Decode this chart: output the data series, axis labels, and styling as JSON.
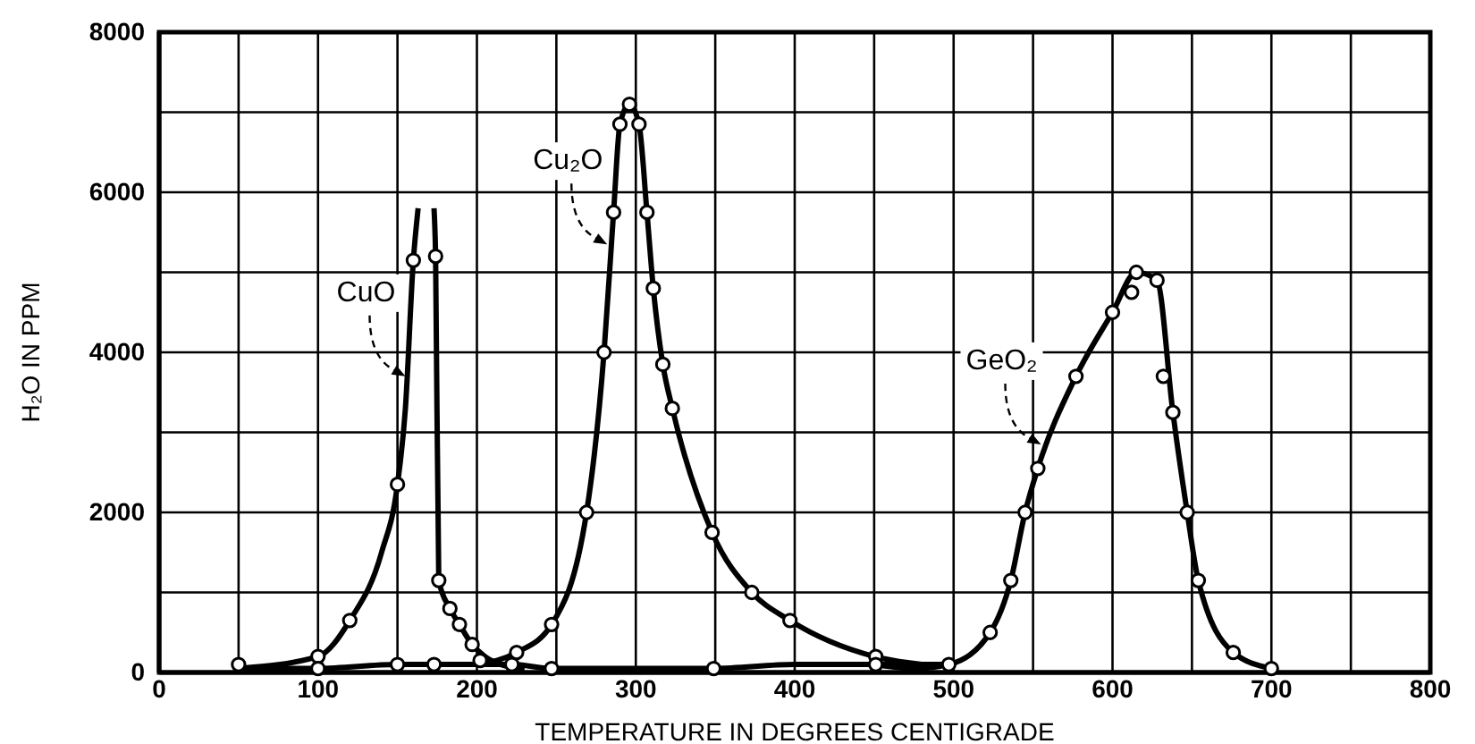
{
  "chart_data": {
    "type": "line",
    "xlabel": "TEMPERATURE IN DEGREES CENTIGRADE",
    "ylabel": "H₂O IN PPM",
    "xlim": [
      0,
      800
    ],
    "ylim": [
      0,
      8000
    ],
    "xticks": [
      0,
      {
        "value": 50,
        "label": null
      },
      100,
      {
        "value": 150,
        "label": null
      },
      200,
      {
        "value": 250,
        "label": null
      },
      300,
      {
        "value": 350,
        "label": null
      },
      400,
      {
        "value": 450,
        "label": null
      },
      500,
      {
        "value": 550,
        "label": null
      },
      600,
      {
        "value": 650,
        "label": null
      },
      700,
      {
        "value": 750,
        "label": null
      },
      800
    ],
    "yticks": [
      0,
      {
        "value": 1000,
        "label": null
      },
      2000,
      {
        "value": 3000,
        "label": null
      },
      4000,
      {
        "value": 5000,
        "label": null
      },
      6000,
      {
        "value": 7000,
        "label": null
      },
      8000
    ],
    "grid": true,
    "series": [
      {
        "color": "#000000",
        "marker": "none",
        "x": [
          50,
          100,
          120,
          140,
          150,
          155,
          160,
          163
        ],
        "values": [
          50,
          200,
          650,
          1500,
          2350,
          3300,
          5150,
          5800
        ]
      },
      {
        "color": "#000000",
        "marker": "none",
        "x": [
          173,
          174,
          176,
          183,
          189,
          197,
          205,
          215,
          230
        ],
        "values": [
          5800,
          5200,
          1150,
          800,
          600,
          350,
          200,
          100,
          50
        ]
      },
      {
        "color": "#000000",
        "marker": "none",
        "x": [
          50,
          100,
          150,
          173,
          222,
          247,
          300,
          349,
          400,
          451,
          497
        ],
        "values": [
          50,
          50,
          100,
          100,
          100,
          50,
          50,
          50,
          100,
          100,
          100
        ]
      },
      {
        "color": "#000000",
        "marker": "none",
        "x": [
          200,
          225,
          247,
          269,
          280,
          286,
          290,
          296,
          302,
          307,
          311,
          317,
          323,
          348,
          373,
          397,
          450,
          480
        ],
        "values": [
          100,
          250,
          600,
          2000,
          4000,
          5750,
          6850,
          7100,
          6850,
          5750,
          4800,
          3850,
          3300,
          1750,
          1000,
          650,
          200,
          100
        ]
      },
      {
        "color": "#000000",
        "marker": "none",
        "x": [
          450,
          475,
          497,
          523,
          536,
          545,
          553,
          577,
          600,
          615,
          628,
          638,
          647,
          654,
          676,
          700
        ],
        "values": [
          100,
          50,
          100,
          500,
          1150,
          2000,
          2550,
          3700,
          4500,
          5000,
          4900,
          3250,
          2000,
          1150,
          250,
          50
        ]
      },
      {
        "type": "scatter",
        "color": "#000000",
        "marker": "circle",
        "x": [
          50,
          100,
          100,
          120,
          150,
          150,
          160,
          174,
          173,
          176,
          183,
          189,
          197,
          202,
          222,
          225,
          247,
          247,
          269,
          280,
          286,
          290,
          296,
          302,
          307,
          311,
          317,
          323,
          348,
          349,
          373,
          397,
          451,
          451,
          497,
          523,
          536,
          545,
          553,
          577,
          600,
          612,
          615,
          628,
          632,
          638,
          647,
          654,
          676,
          700
        ],
        "values": [
          100,
          200,
          50,
          650,
          2350,
          100,
          5150,
          5200,
          100,
          1150,
          800,
          600,
          350,
          150,
          100,
          250,
          50,
          600,
          2000,
          4000,
          5750,
          6850,
          7100,
          6850,
          5750,
          4800,
          3850,
          3300,
          1750,
          50,
          1000,
          650,
          200,
          100,
          100,
          500,
          1150,
          2000,
          2550,
          3700,
          4500,
          4750,
          5000,
          4900,
          3700,
          3250,
          2000,
          1150,
          250,
          50
        ]
      }
    ],
    "annotations": [
      {
        "text": "CuO",
        "x": 155,
        "y": 3700
      },
      {
        "text": "Cu₂O",
        "x": 282,
        "y": 5350
      },
      {
        "text": "GeO₂",
        "x": 555,
        "y": 2850
      }
    ]
  }
}
